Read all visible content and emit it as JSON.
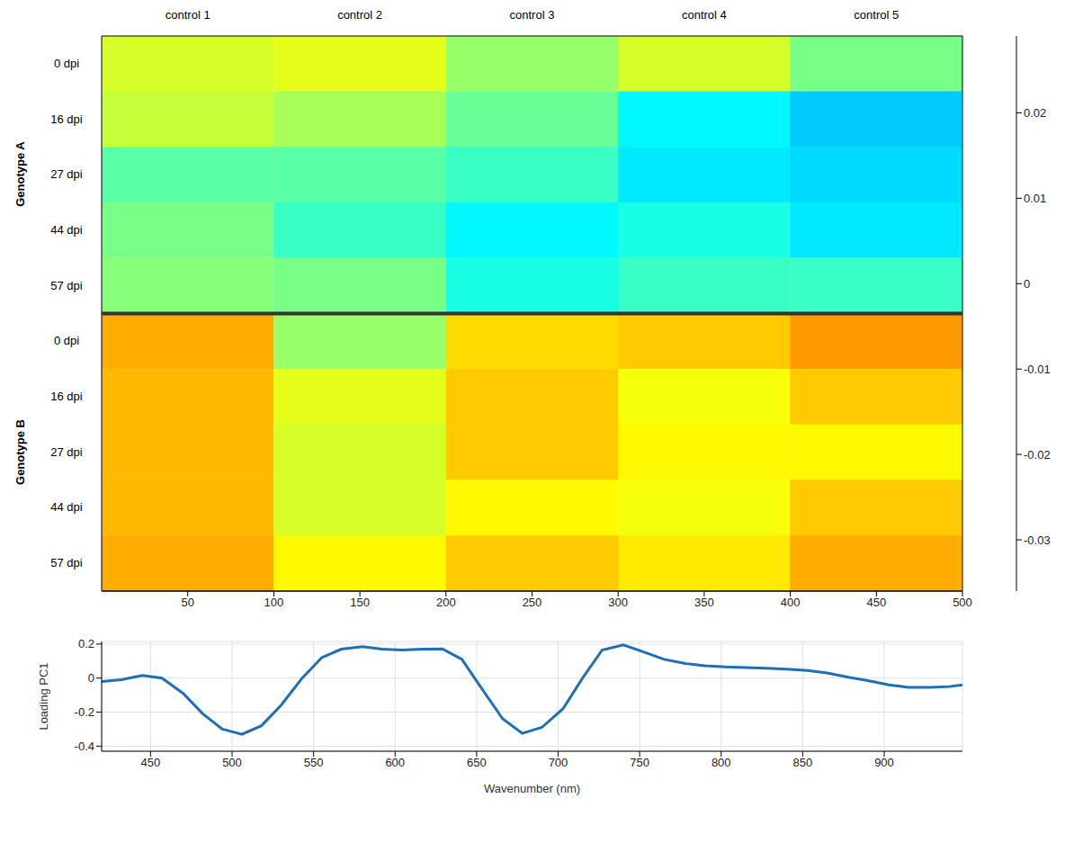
{
  "chart_data": [
    {
      "type": "heatmap",
      "columns": [
        "control 1",
        "control 2",
        "control 3",
        "control 4",
        "control 5"
      ],
      "groups": [
        "Genotype A",
        "Genotype B"
      ],
      "rows": [
        "0 dpi",
        "16 dpi",
        "27 dpi",
        "44 dpi",
        "57 dpi"
      ],
      "cells": [
        [
          [
            0.002,
            0.003,
            -0.002,
            0.002,
            -0.004
          ],
          [
            0.001,
            -0.001,
            -0.005,
            -0.012,
            -0.015
          ],
          [
            -0.006,
            -0.006,
            -0.008,
            -0.013,
            -0.014
          ],
          [
            -0.004,
            -0.008,
            -0.012,
            -0.01,
            -0.013
          ],
          [
            -0.003,
            -0.004,
            -0.01,
            -0.008,
            -0.008
          ]
        ],
        [
          [
            0.01,
            -0.002,
            0.007,
            0.008,
            0.011
          ],
          [
            0.009,
            0.003,
            0.008,
            0.004,
            0.008
          ],
          [
            0.009,
            0.002,
            0.008,
            0.005,
            0.005
          ],
          [
            0.009,
            0.002,
            0.005,
            0.004,
            0.008
          ],
          [
            0.01,
            0.005,
            0.008,
            0.006,
            0.01
          ]
        ]
      ],
      "xlim": [
        0,
        500
      ],
      "xticks": [
        50,
        100,
        150,
        200,
        250,
        300,
        350,
        400,
        450,
        500
      ],
      "tick_labels": "x",
      "colorbar": {
        "range": [
          -0.036,
          0.029
        ],
        "ticks": [
          -0.03,
          -0.02,
          -0.01,
          0,
          0.01,
          0.02
        ]
      }
    },
    {
      "type": "line",
      "xlabel": "Wavenumber (nm)",
      "ylabel": "Loading PC1",
      "x": [
        420,
        432,
        445,
        457,
        470,
        482,
        494,
        506,
        518,
        530,
        543,
        555,
        567,
        580,
        592,
        604,
        617,
        629,
        641,
        653,
        666,
        678,
        690,
        703,
        715,
        727,
        740,
        752,
        765,
        778,
        790,
        803,
        815,
        828,
        840,
        853,
        865,
        878,
        890,
        903,
        915,
        928,
        940,
        948
      ],
      "values": [
        -0.02,
        -0.01,
        0.015,
        0.0,
        -0.09,
        -0.21,
        -0.3,
        -0.33,
        -0.28,
        -0.16,
        0.0,
        0.12,
        0.17,
        0.185,
        0.17,
        0.165,
        0.17,
        0.172,
        0.11,
        -0.06,
        -0.24,
        -0.325,
        -0.29,
        -0.18,
        0.0,
        0.165,
        0.195,
        0.155,
        0.11,
        0.085,
        0.072,
        0.065,
        0.062,
        0.058,
        0.053,
        0.045,
        0.03,
        0.005,
        -0.015,
        -0.04,
        -0.055,
        -0.055,
        -0.05,
        -0.04
      ],
      "color": "#1f6fb5",
      "xlim": [
        420,
        948
      ],
      "xticks": [
        450,
        500,
        550,
        600,
        650,
        700,
        750,
        800,
        850,
        900
      ],
      "ylim": [
        -0.43,
        0.215
      ],
      "yticks": [
        -0.4,
        -0.2,
        0,
        0.2
      ],
      "grid": true
    }
  ]
}
